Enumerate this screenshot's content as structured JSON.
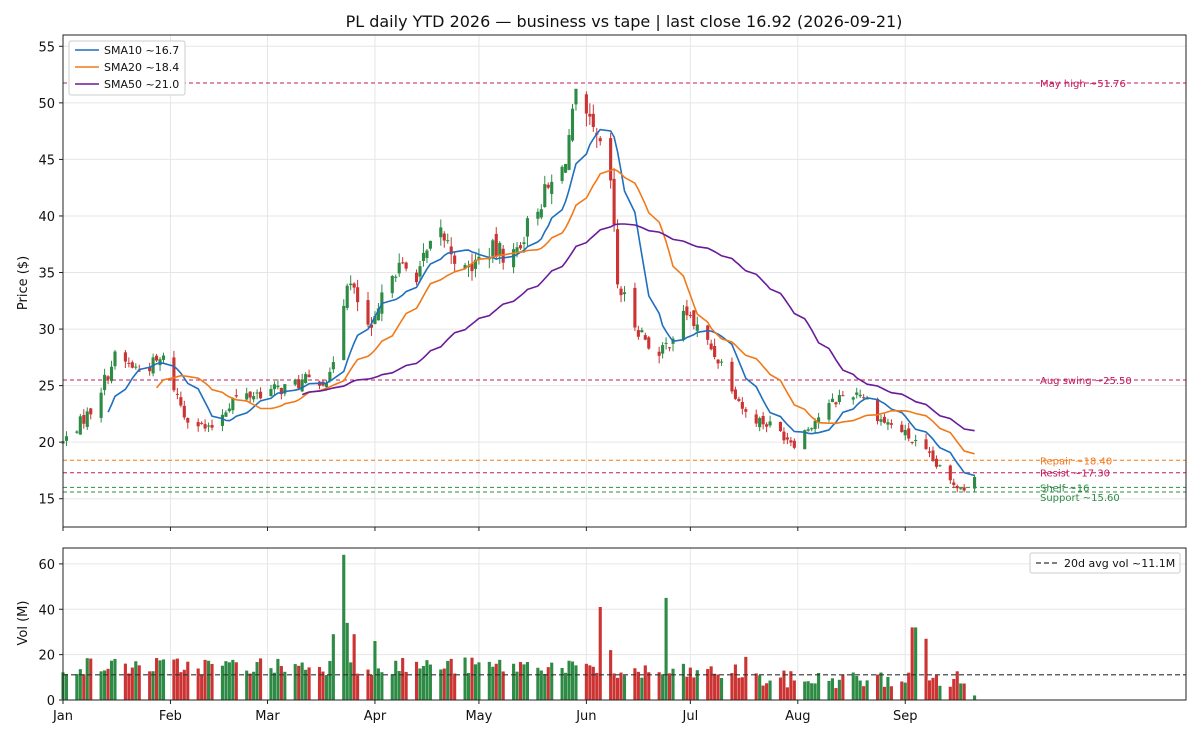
{
  "chart_data": [
    {
      "type": "candlestick",
      "title": "PL daily YTD 2026 — business vs tape | last close 16.92 (2026-09-21)",
      "xlabel": "",
      "ylabel": "Price ($)",
      "ylim": [
        12.5,
        56
      ],
      "yticks": [
        15,
        20,
        25,
        30,
        35,
        40,
        45,
        50,
        55
      ],
      "xlim": [
        "2026-01-01",
        "2026-11-21"
      ],
      "month_ticks": [
        {
          "label": "Jan",
          "date": "2026-01-01"
        },
        {
          "label": "Feb",
          "date": "2026-02-01"
        },
        {
          "label": "Mar",
          "date": "2026-03-01"
        },
        {
          "label": "Apr",
          "date": "2026-04-01"
        },
        {
          "label": "May",
          "date": "2026-05-01"
        },
        {
          "label": "Jun",
          "date": "2026-06-01"
        },
        {
          "label": "Jul",
          "date": "2026-07-01"
        },
        {
          "label": "Aug",
          "date": "2026-08-01"
        },
        {
          "label": "Sep",
          "date": "2026-09-01"
        }
      ],
      "grid": true,
      "legend_position": "top-left",
      "up_color": "#2e8b45",
      "down_color": "#cc3333",
      "close_anchors": [
        [
          "2026-01-01",
          20.0
        ],
        [
          "2026-01-09",
          22.8
        ],
        [
          "2026-01-16",
          27.5
        ],
        [
          "2026-01-23",
          26.4
        ],
        [
          "2026-01-30",
          27.3
        ],
        [
          "2026-02-05",
          22.5
        ],
        [
          "2026-02-12",
          21.0
        ],
        [
          "2026-02-19",
          23.8
        ],
        [
          "2026-02-27",
          24.4
        ],
        [
          "2026-03-06",
          24.8
        ],
        [
          "2026-03-13",
          25.5
        ],
        [
          "2026-03-19",
          25.6
        ],
        [
          "2026-03-24",
          34.5
        ],
        [
          "2026-03-31",
          29.5
        ],
        [
          "2026-04-06",
          35.5
        ],
        [
          "2026-04-13",
          35.0
        ],
        [
          "2026-04-20",
          38.5
        ],
        [
          "2026-04-27",
          35.0
        ],
        [
          "2026-05-04",
          37.0
        ],
        [
          "2026-05-11",
          36.5
        ],
        [
          "2026-05-18",
          41.0
        ],
        [
          "2026-05-25",
          44.0
        ],
        [
          "2026-05-29",
          50.0
        ],
        [
          "2026-06-04",
          46.5
        ],
        [
          "2026-06-08",
          43.0
        ],
        [
          "2026-06-10",
          34.0
        ],
        [
          "2026-06-15",
          30.5
        ],
        [
          "2026-06-22",
          27.5
        ],
        [
          "2026-06-30",
          31.5
        ],
        [
          "2026-07-03",
          30.0
        ],
        [
          "2026-07-10",
          27.0
        ],
        [
          "2026-07-17",
          22.5
        ],
        [
          "2026-07-24",
          21.5
        ],
        [
          "2026-07-31",
          20.0
        ],
        [
          "2026-08-06",
          22.0
        ],
        [
          "2026-08-13",
          24.0
        ],
        [
          "2026-08-19",
          24.5
        ],
        [
          "2026-08-25",
          22.0
        ],
        [
          "2026-08-31",
          21.0
        ],
        [
          "2026-09-07",
          19.0
        ],
        [
          "2026-09-14",
          16.5
        ],
        [
          "2026-09-18",
          16.0
        ],
        [
          "2026-09-21",
          16.92
        ]
      ],
      "series": [
        {
          "name": "SMA10 ~16.7",
          "window": 10,
          "color": "#1f6fbf"
        },
        {
          "name": "SMA20 ~18.4",
          "window": 20,
          "color": "#f07a1a"
        },
        {
          "name": "SMA50 ~21.0",
          "window": 50,
          "color": "#6a1b9a"
        }
      ],
      "reference_lines": [
        {
          "label": "May high ~51.76",
          "value": 51.76,
          "color": "#c2185b"
        },
        {
          "label": "Aug swing ~25.50",
          "value": 25.5,
          "color": "#c2185b"
        },
        {
          "label": "Repair ~18.40",
          "value": 18.4,
          "color": "#f07a1a"
        },
        {
          "label": "Resist ~17.30",
          "value": 17.3,
          "color": "#c2185b"
        },
        {
          "label": "Shelf ~16",
          "value": 16.0,
          "color": "#2e8b45"
        },
        {
          "label": "Support ~15.60",
          "value": 15.6,
          "color": "#2e8b45"
        }
      ]
    },
    {
      "type": "bar",
      "xlabel": "",
      "ylabel": "Vol (M)",
      "ylim": [
        0,
        67
      ],
      "yticks": [
        0,
        20,
        40,
        60
      ],
      "grid": true,
      "legend_position": "top-right",
      "avg_line": {
        "label": "20d avg vol ~11.1M",
        "value": 11.1,
        "color": "#333333"
      },
      "volume_spikes": [
        [
          "2026-03-23",
          64
        ],
        [
          "2026-03-20",
          29
        ],
        [
          "2026-03-24",
          34
        ],
        [
          "2026-03-26",
          29
        ],
        [
          "2026-04-01",
          26
        ],
        [
          "2026-06-05",
          41
        ],
        [
          "2026-06-08",
          22
        ],
        [
          "2026-06-24",
          45
        ],
        [
          "2026-07-17",
          19
        ],
        [
          "2026-09-03",
          32
        ],
        [
          "2026-09-04",
          32
        ],
        [
          "2026-09-07",
          27
        ]
      ]
    }
  ]
}
